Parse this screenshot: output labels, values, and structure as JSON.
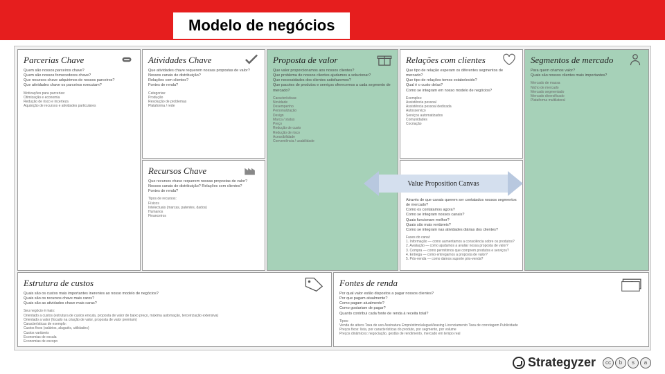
{
  "page_title": "Modelo de negócios",
  "canvas": {
    "type": "business-model-canvas",
    "highlight_color": "#a6d1b8",
    "border_color": "#9a9a9a",
    "background": "#f2f2f2",
    "blocks": {
      "partners": {
        "title": "Parcerias Chave",
        "questions": "Quem são nossos parceiros chave?\nQuem são nossos fornecedores chave?\nQue recursos chave adquirimos de nossos parceiros?\nQue atividades chave os parceiros executam?",
        "examples": "Motivações para parcerias:\nOtimização e economia\nRedução de risco e incerteza\nAquisição de recursos e atividades particulares"
      },
      "activities": {
        "title": "Atividades Chave",
        "questions": "Que atividades chave requerem nossas propostas de valor?\nNossos canais de distribuição?\nRelações com clientes?\nFontes de renda?",
        "examples": "Categorias:\nProdução\nResolução de problemas\nPlataforma / rede"
      },
      "resources": {
        "title": "Recursos Chave",
        "questions": "Que recursos chave requerem nossas propostas de valor?\nNossos canais de distribuição? Relações com clientes?\nFontes de renda?",
        "examples": "Tipos de recursos:\nFísicos\nIntelectuais (marcas, patentes, dados)\nHumanos\nFinanceiros"
      },
      "value": {
        "title": "Proposta de valor",
        "questions": "Que valor proporcionamos aos nossos clientes?\nQue problema de nossos clientes ajudamos a solucionar?\nQue necessidades dos clientes satisfazemos?\nQue pacotes de produtos e serviços oferecemos a cada segmento de mercado?",
        "examples": "Características:\nNovidade\nDesempenho\nPersonalização\nDesign\nMarca / status\nPreço\nRedução de custo\nRedução de risco\nAcessibilidade\nConveniência / usabilidade"
      },
      "relationships": {
        "title": "Relações com clientes",
        "questions": "Que tipo de relação esperam os diferentes segmentos de mercado?\nQue tipo de relações temos estabelecido?\nQual é o custo delas?\nComo se integram em nosso modelo de negócios?",
        "examples": "Exemplos:\nAssistência pessoal\nAssistência pessoal dedicada\nAutosserviço\nServiços automatizados\nComunidades\nCocriação"
      },
      "channels": {
        "title": "",
        "questions": "Através de que canais querem ser contatados nossos segmentos de mercado?\nComo os contatamos agora?\nComo se integram nossos canais?\nQuais funcionam melhor?\nQuais são mais rentáveis?\nComo se integram nas atividades diárias dos clientes?",
        "examples": "Fases do canal:\n1. Informação — como aumentamos a consciência sobre os produtos?\n2. Avaliação — como ajudamos a avaliar nossa proposta de valor?\n3. Compra — como permitimos que comprem produtos e serviços?\n4. Entrega — como entregamos a proposta de valor?\n5. Pós-venda — como damos suporte pós-venda?"
      },
      "segments": {
        "title": "Segmentos de mercado",
        "questions": "Para quem criamos valor?\nQuais são nossos clientes mais importantes?",
        "examples": "Mercado de massa\nNicho de mercado\nMercado segmentado\nMercado diversificado\nPlataforma multilateral"
      },
      "costs": {
        "title": "Estrutura de custos",
        "questions": "Quais são os custos mais importantes inerentes ao nosso modelo de negócios?\nQuais são os recursos chave mais caros?\nQuais são as atividades chave mais caras?",
        "examples": "Seu negócio é mais:\nOrientado a custos (estrutura de custos enxuta, proposta de valor de baixo preço, máxima automação, terceirização extensiva)\nOrientado a valor (focado na criação de valor, proposta de valor premium)\nCaracterísticas de exemplo:\nCustos fixos (salários, aluguéis, utilidades)\nCustos variáveis\nEconomias de escala\nEconomias de escopo"
      },
      "revenue": {
        "title": "Fontes de renda",
        "questions": "Por qual valor estão dispostos a pagar nossos clientes?\nPor que pagam atualmente?\nComo pagam atualmente?\nComo gostariam de pagar?\nQuanto contribui cada fonte de renda à receita total?",
        "examples": "Tipos:\nVenda de ativos  Taxa de uso  Assinatura  Empréstimo/aluguel/leasing  Licenciamento  Taxa de corretagem  Publicidade\nPreços fixos: lista, por características do produto, por segmento, por volume\nPreços dinâmicos: negociação, gestão de rendimento, mercado em tempo real"
      }
    }
  },
  "callout": {
    "label": "Value Proposition Canvas"
  },
  "footer": {
    "brand": "Strategyzer",
    "cc": [
      "cc",
      "b",
      "s",
      "a"
    ]
  },
  "colors": {
    "title_bar": "#e61e1e",
    "arrow_fill": "#d4dfee",
    "arrow_tip": "#b8c8df"
  }
}
